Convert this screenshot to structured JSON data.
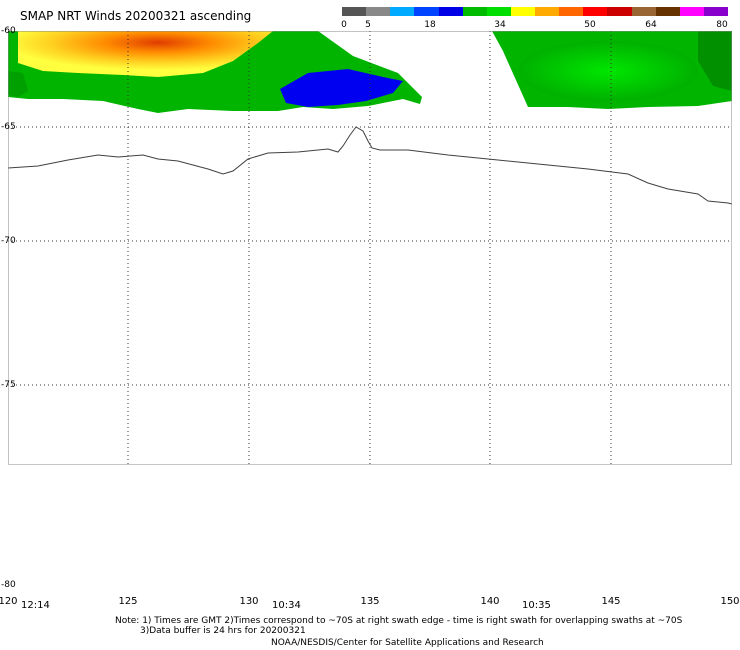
{
  "title": "SMAP NRT Winds 20200321 ascending",
  "colorbar": {
    "colors": [
      "#555555",
      "#888888",
      "#00aaff",
      "#0044ff",
      "#0000e6",
      "#00bb00",
      "#00dd00",
      "#ffff00",
      "#ffaa00",
      "#ff6600",
      "#ff0000",
      "#cc0000",
      "#996633",
      "#663300",
      "#ff00ff",
      "#8800cc"
    ],
    "labels": [
      "0",
      "5",
      "18",
      "34",
      "50",
      "64",
      "80"
    ]
  },
  "lat_labels": [
    "-60",
    "-65",
    "-70",
    "-75",
    "-80"
  ],
  "lon_labels": [
    "120",
    "125",
    "130",
    "135",
    "140",
    "145",
    "150"
  ],
  "times": [
    "12:14",
    "10:34",
    "10:35"
  ],
  "notes": {
    "line1": "Note: 1) Times are GMT 2)Times correspond to ~70S at right swath edge - time is right swath for overlapping swaths at ~70S",
    "line2": "3)Data buffer is 24 hrs for 20200321",
    "line3": "NOAA/NESDIS/Center for Satellite Applications and Research"
  }
}
